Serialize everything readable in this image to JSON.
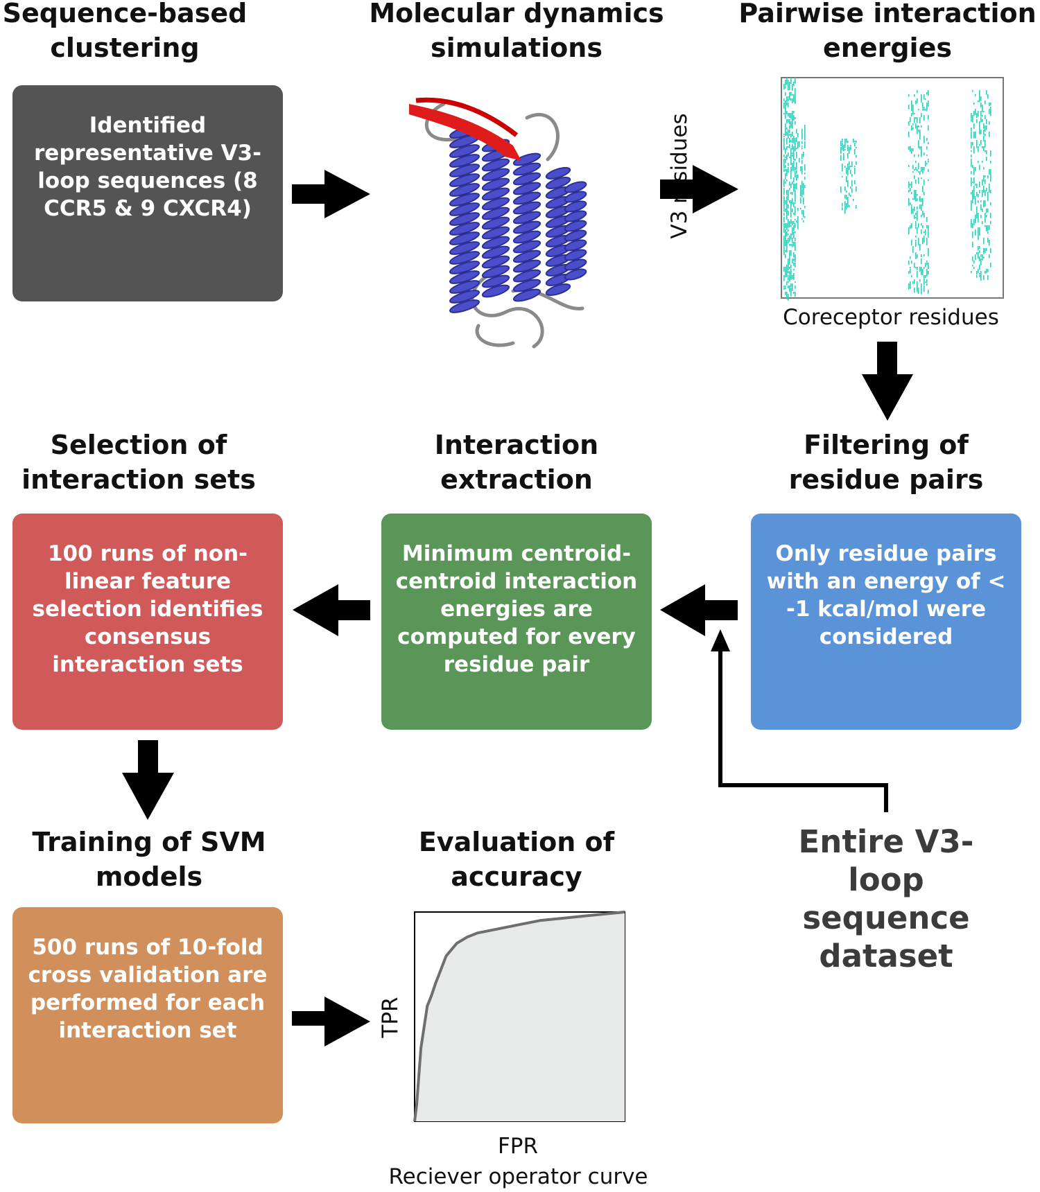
{
  "steps": {
    "clustering": {
      "title": "Sequence-based clustering",
      "text": "Identified representative V3-loop sequences (8 CCR5 & 9 CXCR4)",
      "color": "#545454"
    },
    "md": {
      "title": "Molecular dynamics simulations"
    },
    "energies": {
      "title": "Pairwise interaction energies",
      "ylabel": "V3 residues",
      "xlabel": "Coreceptor residues"
    },
    "filtering": {
      "title": "Filtering of residue pairs",
      "text": "Only residue pairs with an energy of < -1 kcal/mol were considered",
      "color": "#5b93d8"
    },
    "extraction": {
      "title": "Interaction extraction",
      "text": "Minimum centroid-centroid interaction energies are computed for every residue pair",
      "color": "#5a9657"
    },
    "selection": {
      "title": "Selection of interaction sets",
      "text": "100 runs of non-linear feature selection identifies consensus interaction sets",
      "color": "#d05a5a"
    },
    "training": {
      "title": "Training of SVM models",
      "text": "500 runs of 10-fold cross validation are performed for each interaction set",
      "color": "#d08f5b"
    },
    "evaluation": {
      "title": "Evaluation of accuracy",
      "ylabel": "TPR",
      "xlabel": "FPR",
      "caption": "Reciever operator curve"
    }
  },
  "dataset": {
    "text": "Entire V3-loop sequence dataset"
  },
  "chart_data": {
    "type": "line",
    "x": [
      0.0,
      0.01,
      0.03,
      0.06,
      0.08,
      0.1,
      0.15,
      0.2,
      0.25,
      0.3,
      0.4,
      0.5,
      0.6,
      0.7,
      0.8,
      0.9,
      1.0
    ],
    "y": [
      0.0,
      0.08,
      0.35,
      0.55,
      0.6,
      0.66,
      0.79,
      0.85,
      0.88,
      0.9,
      0.92,
      0.94,
      0.96,
      0.97,
      0.98,
      0.99,
      1.0
    ],
    "xlim": [
      0,
      1
    ],
    "ylim": [
      0,
      1
    ],
    "xlabel": "FPR",
    "ylabel": "TPR",
    "title": ""
  }
}
